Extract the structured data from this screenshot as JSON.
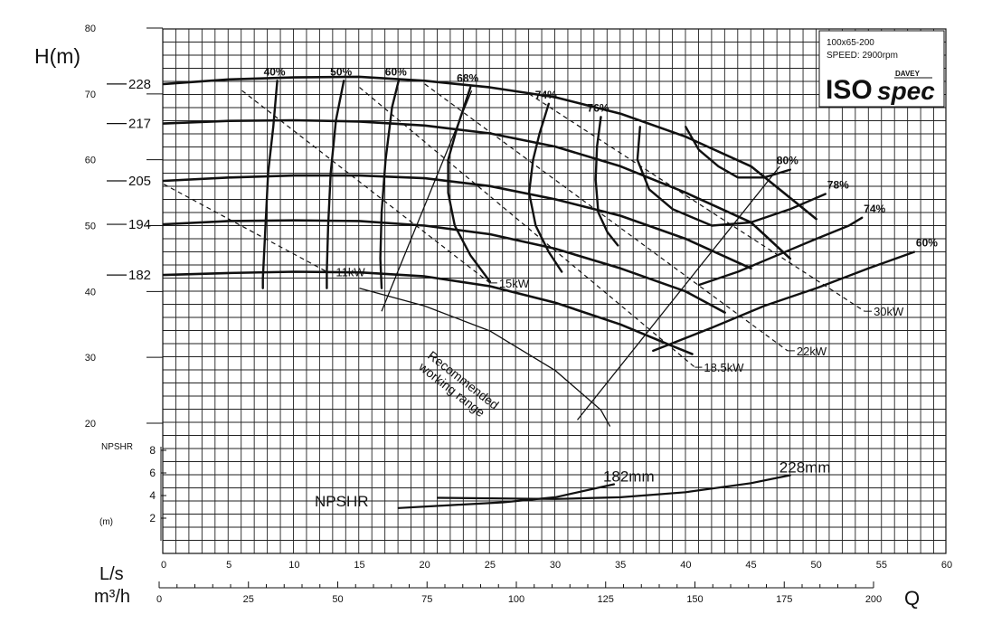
{
  "chart_data": {
    "type": "line",
    "title": "",
    "xlabel": "Q",
    "ylabel": "H(m)",
    "x_unit_primary": "L/s",
    "x_unit_secondary": "m³/h",
    "xlim": [
      0,
      60
    ],
    "ylim": [
      20,
      80
    ],
    "x_ticks_ls": [
      0,
      5,
      10,
      15,
      20,
      25,
      30,
      35,
      40,
      45,
      50,
      55,
      60
    ],
    "x_ticks_m3h": [
      0,
      25,
      50,
      75,
      100,
      125,
      150,
      175,
      200
    ],
    "y_ticks": [
      20,
      30,
      40,
      50,
      60,
      70,
      80
    ],
    "npshr_label": "NPSHR",
    "npshr_unit": "(m)",
    "npshr_ylim": [
      0,
      8
    ],
    "npshr_ticks": [
      2,
      4,
      6,
      8
    ],
    "info_box": {
      "model": "100x65-200",
      "speed": "SPEED: 2900rpm",
      "brand_small": "DAVEY",
      "brand_iso": "ISO",
      "brand_spec": "spec"
    },
    "impeller_curves": [
      {
        "label": "228",
        "points": [
          [
            0,
            71.5
          ],
          [
            5,
            72.2
          ],
          [
            10,
            72.5
          ],
          [
            15,
            72.6
          ],
          [
            20,
            72
          ],
          [
            25,
            71
          ],
          [
            30,
            69.5
          ],
          [
            35,
            67
          ],
          [
            40,
            63.5
          ],
          [
            45,
            59
          ],
          [
            50,
            51
          ]
        ]
      },
      {
        "label": "217",
        "points": [
          [
            0,
            65.5
          ],
          [
            5,
            65.9
          ],
          [
            10,
            66
          ],
          [
            15,
            65.8
          ],
          [
            20,
            65.2
          ],
          [
            25,
            64
          ],
          [
            30,
            62
          ],
          [
            35,
            59
          ],
          [
            40,
            55
          ],
          [
            45,
            50.5
          ],
          [
            48,
            45
          ]
        ]
      },
      {
        "label": "205",
        "points": [
          [
            0,
            56.8
          ],
          [
            5,
            57.3
          ],
          [
            10,
            57.6
          ],
          [
            15,
            57.6
          ],
          [
            20,
            57.2
          ],
          [
            25,
            56
          ],
          [
            30,
            54
          ],
          [
            35,
            51.5
          ],
          [
            40,
            48
          ],
          [
            45,
            43.5
          ]
        ]
      },
      {
        "label": "194",
        "points": [
          [
            0,
            50.2
          ],
          [
            5,
            50.7
          ],
          [
            10,
            50.8
          ],
          [
            15,
            50.7
          ],
          [
            20,
            50
          ],
          [
            25,
            48.7
          ],
          [
            30,
            46.5
          ],
          [
            35,
            43.5
          ],
          [
            40,
            40
          ],
          [
            43,
            36.8
          ]
        ]
      },
      {
        "label": "182",
        "points": [
          [
            0,
            42.5
          ],
          [
            5,
            42.8
          ],
          [
            10,
            43
          ],
          [
            15,
            42.9
          ],
          [
            20,
            42.3
          ],
          [
            25,
            40.8
          ],
          [
            30,
            38.3
          ],
          [
            35,
            35
          ],
          [
            39,
            31.7
          ],
          [
            40.5,
            30.5
          ]
        ]
      }
    ],
    "efficiency_contours": [
      {
        "label": "40%",
        "points": [
          [
            8.7,
            72
          ],
          [
            8.4,
            65
          ],
          [
            8,
            58
          ],
          [
            7.8,
            50
          ],
          [
            7.6,
            42
          ],
          [
            7.6,
            40.5
          ]
        ]
      },
      {
        "label": "50%",
        "points": [
          [
            13.8,
            72
          ],
          [
            13.2,
            66
          ],
          [
            12.8,
            58
          ],
          [
            12.6,
            50
          ],
          [
            12.5,
            43
          ],
          [
            12.5,
            40.5
          ]
        ]
      },
      {
        "label": "60%",
        "points": [
          [
            18,
            72
          ],
          [
            17.5,
            68
          ],
          [
            17,
            60
          ],
          [
            16.7,
            52
          ],
          [
            16.6,
            45
          ],
          [
            16.7,
            40.5
          ]
        ]
      },
      {
        "label": "68%",
        "points": [
          [
            23.5,
            71
          ],
          [
            22.5,
            65
          ],
          [
            21.8,
            60
          ],
          [
            21.8,
            55
          ],
          [
            22.3,
            50
          ],
          [
            23.5,
            45.5
          ],
          [
            25,
            41.5
          ]
        ]
      },
      {
        "label": "74%",
        "points": [
          [
            29.5,
            68.5
          ],
          [
            28.8,
            64
          ],
          [
            28.3,
            60
          ],
          [
            28,
            55
          ],
          [
            28.5,
            50
          ],
          [
            29.5,
            46
          ],
          [
            30.5,
            43
          ]
        ]
      },
      {
        "label": "76%",
        "points": [
          [
            33.5,
            66.5
          ],
          [
            33.2,
            62
          ],
          [
            33.1,
            57
          ],
          [
            33.3,
            52
          ],
          [
            34,
            49
          ],
          [
            34.8,
            47
          ]
        ]
      },
      {
        "label": "78%",
        "points": [
          [
            36.5,
            65
          ],
          [
            36.3,
            60
          ],
          [
            37.2,
            55.5
          ],
          [
            39,
            52.5
          ],
          [
            42,
            50
          ],
          [
            45,
            50.5
          ],
          [
            48,
            52.5
          ],
          [
            50.7,
            54.8
          ]
        ]
      },
      {
        "label": "80%",
        "points": [
          [
            40,
            65
          ],
          [
            41,
            61.5
          ],
          [
            42.5,
            59
          ],
          [
            44,
            57.3
          ],
          [
            46,
            57.3
          ],
          [
            48,
            58.5
          ]
        ]
      },
      {
        "label": "74%",
        "points": [
          [
            41,
            41
          ],
          [
            44,
            43
          ],
          [
            47,
            45.5
          ],
          [
            50,
            48
          ],
          [
            52.5,
            50
          ],
          [
            53.5,
            51.2
          ]
        ]
      },
      {
        "label": "60%",
        "points": [
          [
            37.5,
            31
          ],
          [
            42,
            34.5
          ],
          [
            46,
            37.8
          ],
          [
            50,
            40.5
          ],
          [
            54,
            43.5
          ],
          [
            57.5,
            46
          ]
        ]
      }
    ],
    "power_lines": [
      {
        "label": "11kW",
        "points": [
          [
            0,
            56.3
          ],
          [
            12.5,
            43
          ]
        ]
      },
      {
        "label": "15kW",
        "points": [
          [
            6,
            70.5
          ],
          [
            25,
            41.3
          ]
        ]
      },
      {
        "label": "18.5kW",
        "points": [
          [
            15,
            71
          ],
          [
            40.7,
            28.5
          ]
        ]
      },
      {
        "label": "22kW",
        "points": [
          [
            20,
            71.5
          ],
          [
            47.8,
            31
          ]
        ]
      },
      {
        "label": "30kW",
        "points": [
          [
            28,
            70
          ],
          [
            53.7,
            37
          ]
        ]
      }
    ],
    "recommended_range": {
      "label_line1": "Recommended",
      "label_line2": "working range",
      "left_boundary": [
        [
          16.7,
          37
        ],
        [
          23.6,
          70.5
        ]
      ],
      "right_boundary": [
        [
          31.7,
          20.5
        ],
        [
          47.2,
          59
        ]
      ],
      "bottom_boundary": [
        [
          15,
          40.5
        ],
        [
          20,
          37.8
        ],
        [
          25,
          34
        ],
        [
          30,
          28
        ],
        [
          33.5,
          22
        ],
        [
          34.2,
          19.5
        ]
      ]
    },
    "npshr_curves": [
      {
        "label": "182mm",
        "points": [
          [
            18,
            2.9
          ],
          [
            22,
            3.15
          ],
          [
            26,
            3.4
          ],
          [
            30,
            3.85
          ],
          [
            34.5,
            5
          ]
        ]
      },
      {
        "label": "228mm",
        "points": [
          [
            21,
            3.8
          ],
          [
            30,
            3.7
          ],
          [
            35,
            3.85
          ],
          [
            40,
            4.3
          ],
          [
            45,
            5.1
          ],
          [
            48,
            5.8
          ]
        ]
      }
    ]
  }
}
